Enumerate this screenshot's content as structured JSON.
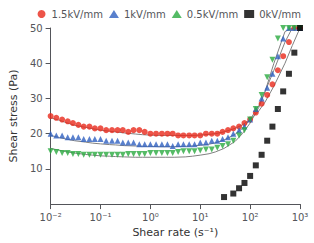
{
  "chart_data": {
    "type": "scatter",
    "xlabel": "Shear rate (s⁻¹)",
    "ylabel": "Shear stress (Pa)",
    "log": "x",
    "xlim": [
      0.01,
      1000
    ],
    "xticks": [
      {
        "value": 0.01,
        "label": "10⁻²"
      },
      {
        "value": 0.1,
        "label": "10⁻¹"
      },
      {
        "value": 1,
        "label": "10⁰"
      },
      {
        "value": 10,
        "label": "10¹"
      },
      {
        "value": 100,
        "label": "10²"
      },
      {
        "value": 1000,
        "label": "10³"
      }
    ],
    "ylim": [
      0,
      50
    ],
    "yticks": [
      10,
      20,
      30,
      40,
      50
    ],
    "grid": false,
    "legend": "upper right",
    "series": [
      {
        "name": "1.5kV/mm",
        "type": "scatter",
        "color": "#e8291c",
        "marker": "circle",
        "x": [
          0.01,
          0.013,
          0.017,
          0.022,
          0.028,
          0.036,
          0.046,
          0.06,
          0.077,
          0.1,
          0.13,
          0.17,
          0.22,
          0.28,
          0.36,
          0.46,
          0.6,
          0.77,
          1.0,
          1.3,
          1.7,
          2.2,
          2.8,
          3.6,
          4.6,
          6.0,
          7.7,
          10,
          13,
          17,
          22,
          28,
          36,
          46,
          60,
          77,
          100,
          130,
          170,
          220,
          280,
          360,
          460,
          600,
          770,
          1000
        ],
        "values": [
          25.0,
          24.5,
          24.0,
          23.5,
          23.0,
          22.5,
          22.0,
          22.0,
          21.5,
          21.5,
          21.0,
          21.0,
          21.0,
          21.0,
          20.5,
          21.0,
          21.0,
          20.5,
          20.0,
          20.0,
          20.0,
          20.0,
          20.0,
          19.5,
          19.5,
          19.5,
          19.5,
          19.5,
          20.0,
          20.0,
          20.0,
          20.5,
          21.0,
          21.5,
          22.0,
          23.0,
          24.0,
          26.0,
          28.5,
          31.0,
          34.0,
          38.0,
          42.0,
          46.0,
          50.0,
          50.0
        ]
      },
      {
        "type": "line",
        "color": "#808080",
        "line_style": "solid",
        "x": [
          0.01,
          0.015,
          0.02,
          0.03,
          0.05,
          0.07,
          0.1,
          0.15,
          0.2,
          0.3,
          0.5,
          0.7,
          1,
          1.5,
          2,
          3,
          5,
          7,
          10,
          15,
          20,
          30,
          50,
          70,
          100,
          150,
          200,
          300,
          500,
          700,
          1000
        ],
        "values": [
          24.5,
          23.8,
          23.2,
          22.4,
          21.8,
          21.4,
          21.0,
          20.7,
          20.5,
          20.2,
          19.9,
          19.7,
          19.6,
          19.5,
          19.5,
          19.5,
          19.5,
          19.5,
          19.6,
          19.8,
          20.0,
          20.5,
          21.5,
          22.5,
          24.0,
          26.5,
          29.0,
          33.5,
          40.0,
          45.0,
          50.0
        ]
      },
      {
        "name": "1kV/mm",
        "type": "scatter",
        "color": "#3060c0",
        "marker": "triangle-up",
        "x": [
          0.01,
          0.013,
          0.017,
          0.022,
          0.028,
          0.036,
          0.046,
          0.06,
          0.077,
          0.1,
          0.13,
          0.17,
          0.22,
          0.28,
          0.36,
          0.46,
          0.6,
          0.77,
          1.0,
          1.3,
          1.7,
          2.2,
          2.8,
          3.6,
          4.6,
          6.0,
          7.7,
          10,
          13,
          17,
          22,
          28,
          36,
          46,
          60,
          77,
          100,
          130,
          170,
          220,
          280,
          360,
          460,
          600,
          770,
          1000
        ],
        "values": [
          20.0,
          19.5,
          19.5,
          19.0,
          19.0,
          19.0,
          18.5,
          18.5,
          18.5,
          18.5,
          18.0,
          18.0,
          18.0,
          17.5,
          17.5,
          17.5,
          17.0,
          17.0,
          17.0,
          17.0,
          17.0,
          17.0,
          16.5,
          17.0,
          17.0,
          17.0,
          17.0,
          17.5,
          17.5,
          18.0,
          18.0,
          18.5,
          19.0,
          20.0,
          21.0,
          22.0,
          24.0,
          27.0,
          30.0,
          33.0,
          37.0,
          42.0,
          47.0,
          50.0,
          50.0,
          50.0
        ]
      },
      {
        "type": "line",
        "color": "#808080",
        "line_style": "solid",
        "x": [
          0.01,
          0.015,
          0.02,
          0.03,
          0.05,
          0.07,
          0.1,
          0.15,
          0.2,
          0.3,
          0.5,
          0.7,
          1,
          1.5,
          2,
          3,
          5,
          7,
          10,
          15,
          20,
          30,
          50,
          70,
          100,
          150,
          200,
          300,
          500,
          700,
          1000
        ],
        "values": [
          19.5,
          18.9,
          18.5,
          18.0,
          17.6,
          17.3,
          17.1,
          16.9,
          16.8,
          16.6,
          16.5,
          16.4,
          16.4,
          16.3,
          16.3,
          16.3,
          16.4,
          16.5,
          16.7,
          17.0,
          17.4,
          18.2,
          19.8,
          21.5,
          24.0,
          28.0,
          32.0,
          38.0,
          46.0,
          50.0,
          50.0
        ]
      },
      {
        "name": "0.5kV/mm",
        "type": "scatter",
        "color": "#2aaa40",
        "marker": "triangle-down",
        "x": [
          0.01,
          0.013,
          0.017,
          0.022,
          0.028,
          0.036,
          0.046,
          0.06,
          0.077,
          0.1,
          0.13,
          0.17,
          0.22,
          0.28,
          0.36,
          0.46,
          0.6,
          0.77,
          1.0,
          1.3,
          1.7,
          2.2,
          2.8,
          3.6,
          4.6,
          6.0,
          7.7,
          10,
          13,
          17,
          22,
          28,
          36,
          46,
          60,
          77,
          100,
          130,
          170,
          220,
          280,
          360,
          460,
          600,
          770,
          1000
        ],
        "values": [
          15.0,
          14.8,
          14.5,
          14.5,
          14.2,
          14.2,
          14.0,
          14.0,
          14.0,
          14.0,
          14.0,
          14.0,
          14.0,
          14.0,
          14.2,
          14.2,
          14.2,
          14.2,
          14.5,
          14.5,
          14.5,
          14.5,
          14.5,
          14.8,
          15.0,
          15.0,
          15.0,
          15.2,
          15.5,
          15.5,
          16.0,
          16.5,
          17.0,
          18.0,
          19.5,
          21.0,
          24.0,
          27.0,
          31.0,
          36.0,
          41.0,
          47.0,
          50.0,
          50.0,
          50.0,
          50.0
        ]
      },
      {
        "type": "line",
        "color": "#808080",
        "line_style": "solid",
        "x": [
          0.01,
          0.015,
          0.02,
          0.03,
          0.05,
          0.07,
          0.1,
          0.15,
          0.2,
          0.3,
          0.5,
          0.7,
          1,
          1.5,
          2,
          3,
          5,
          7,
          10,
          15,
          20,
          30,
          50,
          70,
          100,
          150,
          200,
          300,
          500,
          700,
          1000
        ],
        "values": [
          15.8,
          15.3,
          14.9,
          14.5,
          14.1,
          13.9,
          13.7,
          13.6,
          13.5,
          13.4,
          13.3,
          13.3,
          13.3,
          13.3,
          13.3,
          13.3,
          13.4,
          13.6,
          13.9,
          14.3,
          14.8,
          15.8,
          17.8,
          20.0,
          23.0,
          27.5,
          32.0,
          40.0,
          49.0,
          50.0,
          50.0
        ]
      },
      {
        "name": "0kV/mm",
        "type": "scatter",
        "color": "#000000",
        "marker": "square",
        "x": [
          30,
          46,
          60,
          77,
          100,
          130,
          170,
          220,
          280,
          360,
          460,
          600,
          770,
          1000
        ],
        "values": [
          2.0,
          3.0,
          4.5,
          6.0,
          8.0,
          11.0,
          14.0,
          18.0,
          22.0,
          27.0,
          32.0,
          37.0,
          43.0,
          50.0
        ]
      }
    ]
  }
}
